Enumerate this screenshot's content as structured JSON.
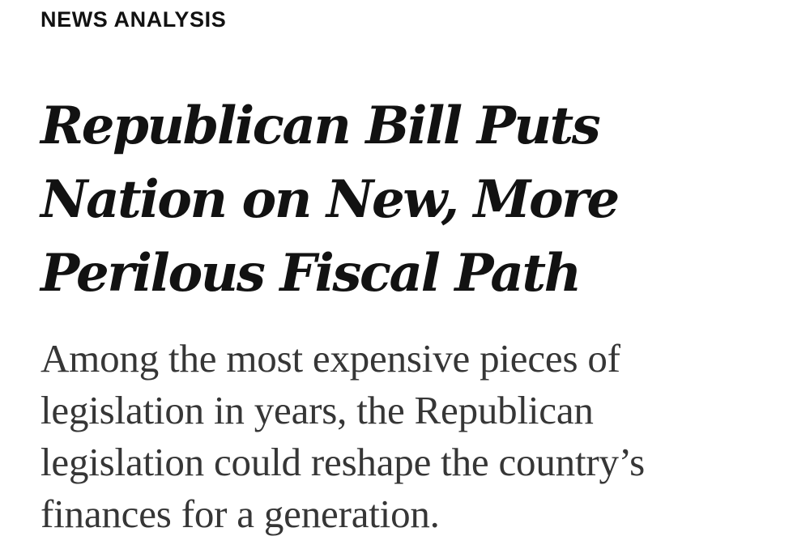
{
  "article": {
    "kicker": "NEWS ANALYSIS",
    "headline_lines": [
      "Republican Bill Puts",
      "Nation on New, More",
      "Perilous Fiscal Path"
    ],
    "summary_lines": [
      "Among the most expensive pieces of",
      "legislation in years, the Republican",
      "legislation could reshape the country’s",
      "finances for a generation."
    ]
  },
  "colors": {
    "headline": "#121212",
    "summary": "#363636",
    "background": "#ffffff"
  }
}
